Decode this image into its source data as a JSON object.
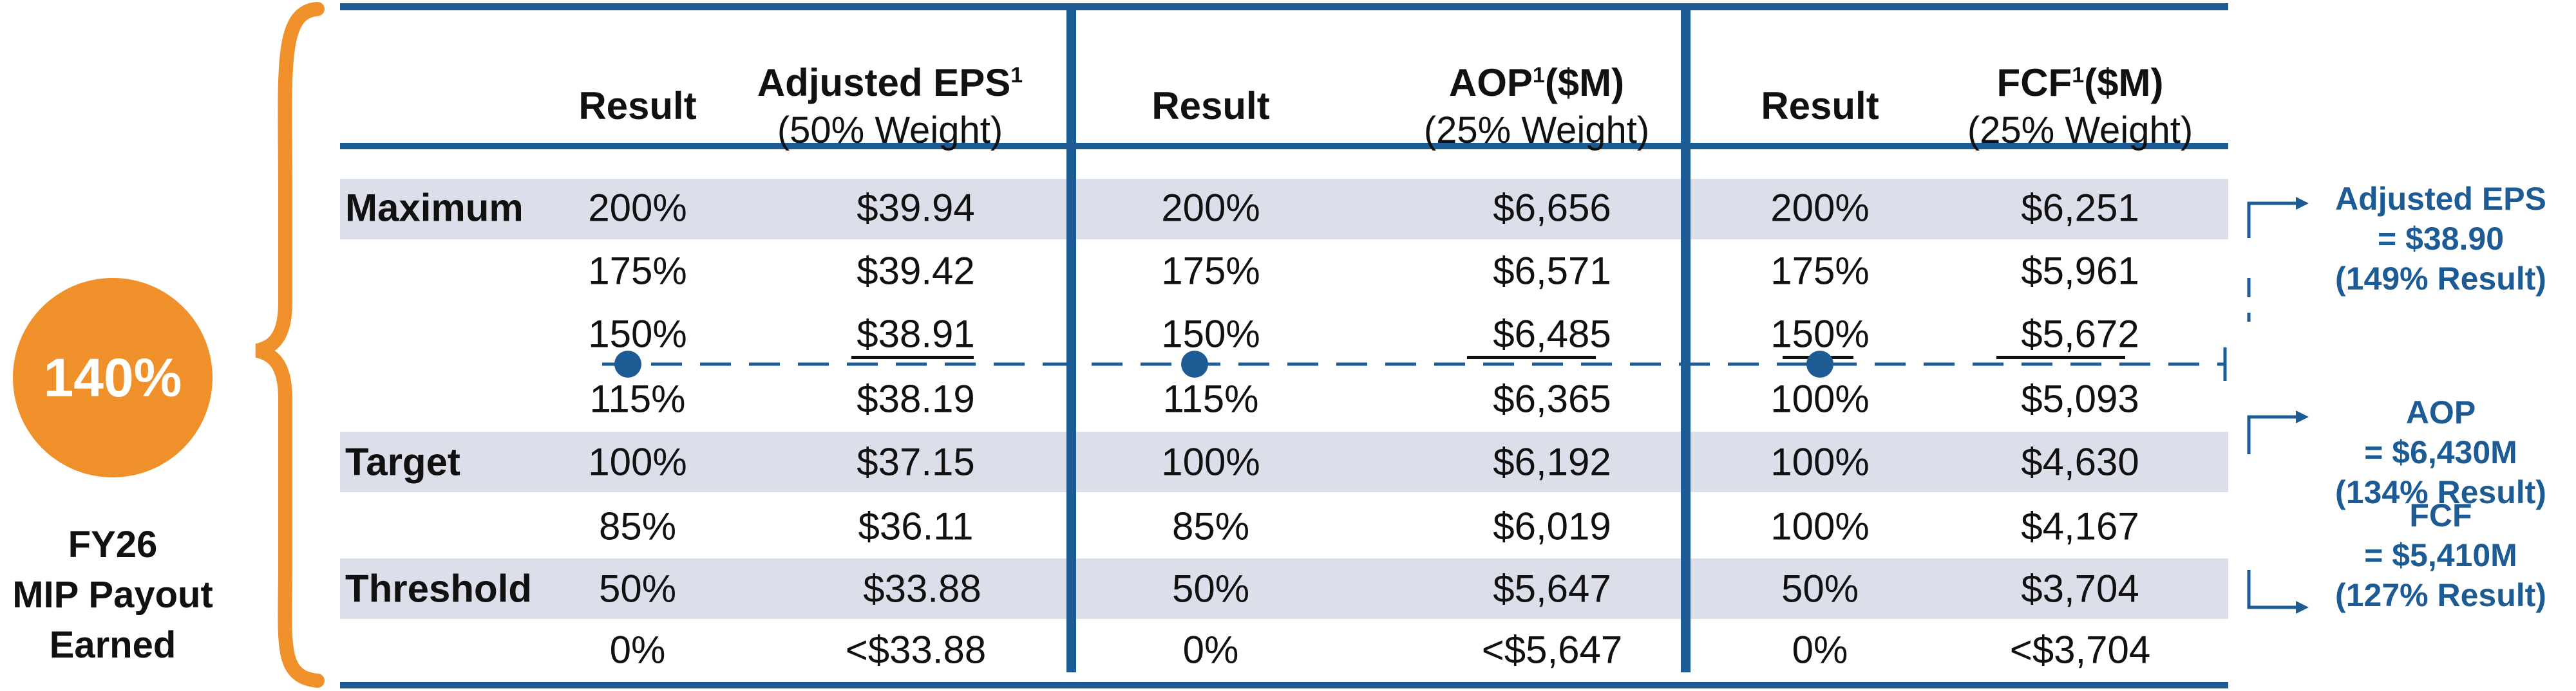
{
  "payout": {
    "percent": "140%",
    "caption_lines": [
      "FY26",
      "MIP Payout",
      "Earned"
    ]
  },
  "headers": {
    "result": "Result",
    "eps": {
      "title": "Adjusted EPS",
      "sup": "1",
      "weight": "(50% Weight)"
    },
    "aop": {
      "title": "AOP",
      "sup": "1",
      "unit": "($M)",
      "weight": "(25% Weight)"
    },
    "fcf": {
      "title": "FCF",
      "sup": "1",
      "unit": "($M)",
      "weight": "(25% Weight)"
    }
  },
  "rows": [
    {
      "label": "Maximum",
      "eps_result": "200%",
      "eps": "$39.94",
      "aop_result": "200%",
      "aop": "$6,656",
      "fcf_result": "200%",
      "fcf": "$6,251"
    },
    {
      "label": "",
      "eps_result": "175%",
      "eps": "$39.42",
      "aop_result": "175%",
      "aop": "$6,571",
      "fcf_result": "175%",
      "fcf": "$5,961"
    },
    {
      "label": "",
      "eps_result": "150%",
      "eps": "$38.91",
      "aop_result": "150%",
      "aop": "$6,485",
      "fcf_result": "150%",
      "fcf": "$5,672"
    },
    {
      "label": "",
      "eps_result": "115%",
      "eps": "$38.19",
      "aop_result": "115%",
      "aop": "$6,365",
      "fcf_result": "100%",
      "fcf": "$5,093"
    },
    {
      "label": "Target",
      "eps_result": "100%",
      "eps": "$37.15",
      "aop_result": "100%",
      "aop": "$6,192",
      "fcf_result": "100%",
      "fcf": "$4,630"
    },
    {
      "label": "",
      "eps_result": "85%",
      "eps": "$36.11",
      "aop_result": "85%",
      "aop": "$6,019",
      "fcf_result": "100%",
      "fcf": "$4,167"
    },
    {
      "label": "Threshold",
      "eps_result": "50%",
      "eps": "$33.88",
      "aop_result": "50%",
      "aop": "$5,647",
      "fcf_result": "50%",
      "fcf": "$3,704"
    },
    {
      "label": "",
      "eps_result": "0%",
      "eps": "<$33.88",
      "aop_result": "0%",
      "aop": "<$5,647",
      "fcf_result": "0%",
      "fcf": "<$3,704"
    }
  ],
  "shaded_rows": [
    0,
    4,
    6
  ],
  "annotations": [
    {
      "lines": [
        "Adjusted EPS",
        "= $38.90",
        "(149% Result)"
      ]
    },
    {
      "lines": [
        "AOP",
        "= $6,430M",
        "(134% Result)"
      ]
    },
    {
      "lines": [
        "FCF",
        "= $5,410M",
        "(127% Result)"
      ]
    }
  ],
  "colors": {
    "accent_orange": "#f0902a",
    "rule_blue": "#1d5b94",
    "band_gray": "#dcdfe9"
  }
}
